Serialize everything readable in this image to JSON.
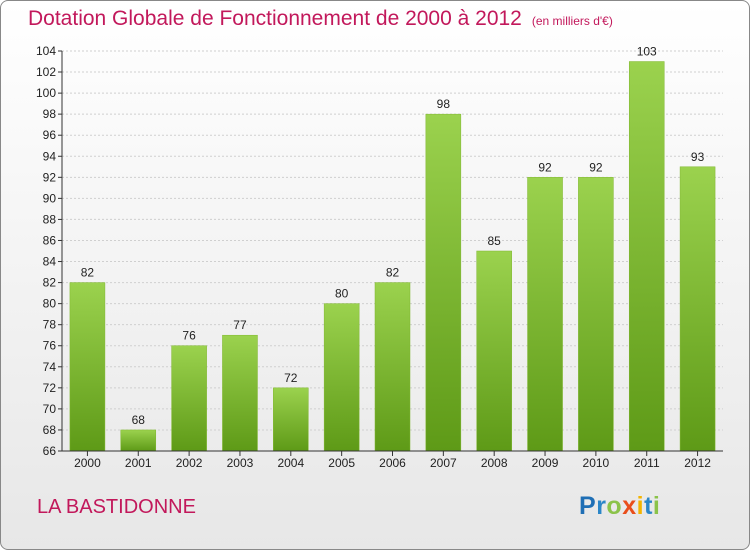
{
  "title": "Dotation Globale de Fonctionnement de 2000 à 2012",
  "unit_label": "(en milliers d'€)",
  "commune": "LA BASTIDONNE",
  "logo": {
    "text": "Proxiti",
    "letters": [
      {
        "ch": "P",
        "color": "#1f6fb5"
      },
      {
        "ch": "r",
        "color": "#2b86c8"
      },
      {
        "ch": "o",
        "color": "#8bc34a"
      },
      {
        "ch": "x",
        "color": "#e94e1b"
      },
      {
        "ch": "i",
        "color": "#f4b400"
      },
      {
        "ch": "t",
        "color": "#2b86c8"
      },
      {
        "ch": "i",
        "color": "#8bc34a"
      }
    ]
  },
  "colors": {
    "title": "#c2185b",
    "bar_top": "#9bd24e",
    "bar_bottom": "#5e9a17",
    "axis": "#333333"
  },
  "chart_data": {
    "type": "bar",
    "categories": [
      "2000",
      "2001",
      "2002",
      "2003",
      "2004",
      "2005",
      "2006",
      "2007",
      "2008",
      "2009",
      "2010",
      "2011",
      "2012"
    ],
    "values": [
      82,
      68,
      76,
      77,
      72,
      80,
      82,
      98,
      85,
      92,
      92,
      103,
      93
    ],
    "ylim": [
      66,
      104
    ],
    "yticks": [
      66,
      68,
      70,
      72,
      74,
      76,
      78,
      80,
      82,
      84,
      86,
      88,
      90,
      92,
      94,
      96,
      98,
      100,
      102,
      104
    ],
    "xlabel": "",
    "ylabel": "",
    "grid": true
  }
}
